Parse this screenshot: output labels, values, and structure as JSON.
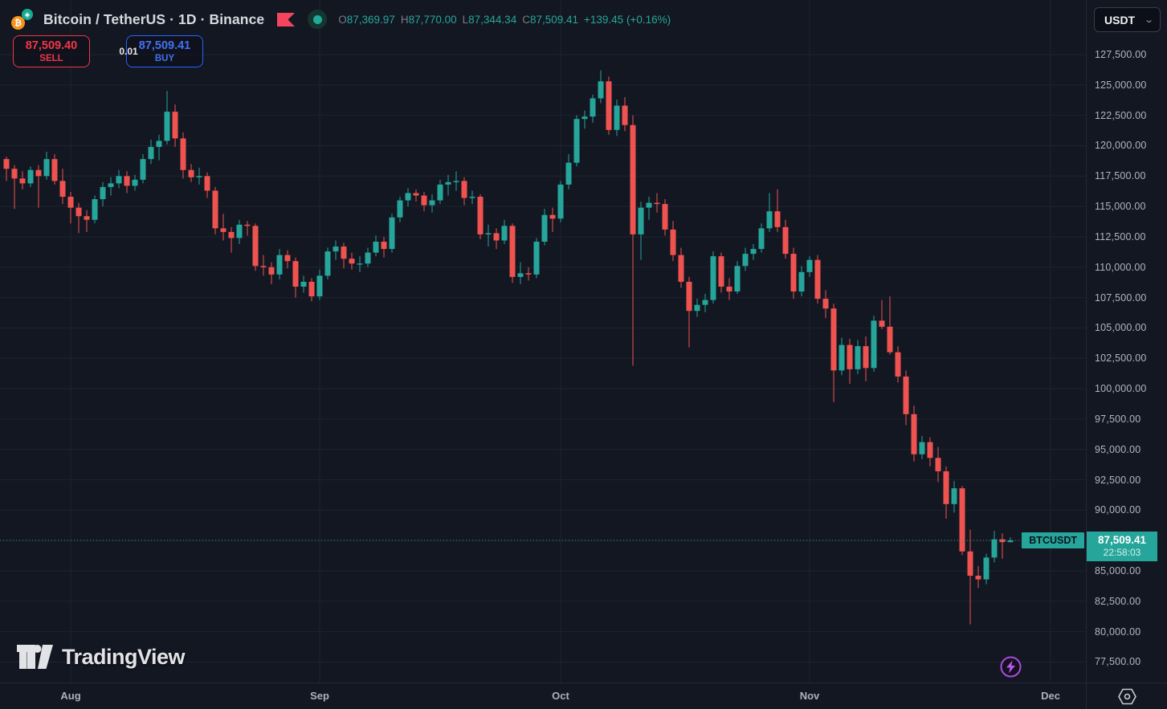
{
  "header": {
    "symbol_title": "Bitcoin / TetherUS · 1D · Binance",
    "ohlc": {
      "o_label": "O",
      "o": "87,369.97",
      "h_label": "H",
      "h": "87,770.00",
      "l_label": "L",
      "l": "87,344.34",
      "c_label": "C",
      "c": "87,509.41",
      "change": "+139.45 (+0.16%)"
    },
    "sell": {
      "price": "87,509.40",
      "label": "SELL"
    },
    "spread": "0.01",
    "buy": {
      "price": "87,509.41",
      "label": "BUY"
    },
    "currency": "USDT",
    "coin_symbol": "₿"
  },
  "price_line": {
    "symbol_badge": "BTCUSDT",
    "price": "87,509.41",
    "countdown": "22:58:03"
  },
  "watermark": {
    "text": "TradingView"
  },
  "colors": {
    "background": "#131722",
    "grid": "#1e2330",
    "up": "#26a69a",
    "down": "#ef5350",
    "accent": "#26a69a",
    "sell_red": "#f23645",
    "buy_blue": "#2962ff",
    "axis_text": "#b2b5be",
    "lightning_purple": "#a84ddb"
  },
  "chart_data": {
    "type": "candlestick",
    "title": "Bitcoin / TetherUS · 1D · Binance",
    "symbol": "BTCUSDT",
    "interval": "1D",
    "exchange": "Binance",
    "legend_ohlc": {
      "open": 87369.97,
      "high": 87770.0,
      "low": 87344.34,
      "close": 87509.41,
      "change": 139.45,
      "change_pct": 0.16
    },
    "y_axis": {
      "min": 77500,
      "max": 127500,
      "step": 2500,
      "tick_values": [
        127500,
        125000,
        122500,
        120000,
        117500,
        115000,
        112500,
        110000,
        107500,
        105000,
        102500,
        100000,
        97500,
        95000,
        92500,
        90000,
        87500,
        85000,
        82500,
        80000,
        77500
      ],
      "tick_labels": [
        "127,500.00",
        "125,000.00",
        "122,500.00",
        "120,000.00",
        "117,500.00",
        "115,000.00",
        "112,500.00",
        "110,000.00",
        "107,500.00",
        "105,000.00",
        "102,500.00",
        "100,000.00",
        "97,500.00",
        "95,000.00",
        "92,500.00",
        "90,000.00",
        "87,500.00",
        "85,000.00",
        "82,500.00",
        "80,000.00",
        "77,500.00"
      ]
    },
    "x_axis": {
      "months": [
        {
          "label": "Aug",
          "candle_index": 8
        },
        {
          "label": "Sep",
          "candle_index": 39
        },
        {
          "label": "Oct",
          "candle_index": 69
        },
        {
          "label": "Nov",
          "candle_index": 100
        },
        {
          "label": "Dec",
          "candle_index": 130
        }
      ]
    },
    "price_line_value": 87509.41,
    "candles": [
      [
        118900,
        119100,
        117100,
        118100
      ],
      [
        118100,
        118400,
        114800,
        117300
      ],
      [
        117300,
        117900,
        116400,
        116900
      ],
      [
        116900,
        118300,
        116600,
        118000
      ],
      [
        118000,
        118400,
        114900,
        117500
      ],
      [
        117500,
        119500,
        117200,
        118900
      ],
      [
        118900,
        119300,
        116800,
        117100
      ],
      [
        117100,
        118100,
        115200,
        115800
      ],
      [
        115800,
        116200,
        113600,
        114900
      ],
      [
        114900,
        115300,
        112800,
        114200
      ],
      [
        114200,
        114700,
        112900,
        113900
      ],
      [
        113900,
        115900,
        113600,
        115600
      ],
      [
        115600,
        117000,
        115000,
        116600
      ],
      [
        116600,
        117400,
        115900,
        116900
      ],
      [
        116900,
        118000,
        116500,
        117500
      ],
      [
        117500,
        117900,
        116100,
        116700
      ],
      [
        116700,
        117600,
        116300,
        117200
      ],
      [
        117200,
        119300,
        116900,
        118900
      ],
      [
        118900,
        120500,
        118500,
        119900
      ],
      [
        119900,
        120900,
        118800,
        120400
      ],
      [
        120400,
        124500,
        120100,
        122800
      ],
      [
        122800,
        123400,
        119900,
        120600
      ],
      [
        120600,
        121100,
        117300,
        118000
      ],
      [
        118000,
        118500,
        117000,
        117400
      ],
      [
        117400,
        118200,
        116800,
        117500
      ],
      [
        117500,
        117800,
        115700,
        116300
      ],
      [
        116300,
        116600,
        112700,
        113200
      ],
      [
        113200,
        114400,
        112200,
        112900
      ],
      [
        112900,
        113300,
        111200,
        112400
      ],
      [
        112400,
        113900,
        111900,
        113500
      ],
      [
        113500,
        113800,
        112600,
        113400
      ],
      [
        113400,
        113600,
        109700,
        110100
      ],
      [
        110100,
        111000,
        109300,
        110000
      ],
      [
        110000,
        110400,
        108600,
        109400
      ],
      [
        109400,
        111500,
        109000,
        111000
      ],
      [
        111000,
        111400,
        109900,
        110500
      ],
      [
        110500,
        110800,
        107500,
        108400
      ],
      [
        108400,
        109300,
        107900,
        108800
      ],
      [
        108800,
        109100,
        107200,
        107600
      ],
      [
        107600,
        109800,
        107300,
        109300
      ],
      [
        109300,
        111600,
        109000,
        111300
      ],
      [
        111300,
        112200,
        110600,
        111700
      ],
      [
        111700,
        112000,
        109900,
        110700
      ],
      [
        110700,
        111200,
        109800,
        110300
      ],
      [
        110300,
        110900,
        109600,
        110300
      ],
      [
        110300,
        111600,
        110000,
        111200
      ],
      [
        111200,
        112600,
        110900,
        112100
      ],
      [
        112100,
        112500,
        110800,
        111500
      ],
      [
        111500,
        114400,
        111200,
        114100
      ],
      [
        114100,
        115800,
        113700,
        115500
      ],
      [
        115500,
        116500,
        115000,
        116100
      ],
      [
        116100,
        116400,
        115400,
        115900
      ],
      [
        115900,
        116200,
        114600,
        115100
      ],
      [
        115100,
        116000,
        114500,
        115500
      ],
      [
        115500,
        117200,
        115200,
        116800
      ],
      [
        116800,
        117600,
        115900,
        117000
      ],
      [
        117000,
        117900,
        116300,
        117100
      ],
      [
        117100,
        117400,
        115100,
        115700
      ],
      [
        115700,
        116300,
        115200,
        115800
      ],
      [
        115800,
        116000,
        112300,
        112700
      ],
      [
        112700,
        113500,
        111700,
        112800
      ],
      [
        112800,
        113200,
        111500,
        112200
      ],
      [
        112200,
        113900,
        111900,
        113400
      ],
      [
        113400,
        113600,
        108700,
        109200
      ],
      [
        109200,
        110400,
        108600,
        109500
      ],
      [
        109500,
        110000,
        108900,
        109400
      ],
      [
        109400,
        112400,
        109100,
        112100
      ],
      [
        112100,
        114800,
        111800,
        114300
      ],
      [
        114300,
        114900,
        112900,
        114000
      ],
      [
        114000,
        117100,
        113700,
        116800
      ],
      [
        116800,
        119300,
        116400,
        118600
      ],
      [
        118600,
        122500,
        118300,
        122200
      ],
      [
        122200,
        122900,
        121400,
        122400
      ],
      [
        122400,
        124200,
        121900,
        123900
      ],
      [
        123900,
        126200,
        123500,
        125300
      ],
      [
        125300,
        125700,
        120900,
        121300
      ],
      [
        121300,
        123800,
        120800,
        123300
      ],
      [
        123300,
        124000,
        121200,
        121700
      ],
      [
        121700,
        122500,
        101900,
        112700
      ],
      [
        112700,
        115400,
        110600,
        114900
      ],
      [
        114900,
        115800,
        113900,
        115300
      ],
      [
        115300,
        116100,
        114500,
        115200
      ],
      [
        115200,
        115600,
        112600,
        113100
      ],
      [
        113100,
        113800,
        110500,
        111000
      ],
      [
        111000,
        111600,
        108300,
        108800
      ],
      [
        108800,
        109200,
        103400,
        106400
      ],
      [
        106400,
        107400,
        105900,
        106900
      ],
      [
        106900,
        107800,
        106300,
        107300
      ],
      [
        107300,
        111300,
        107000,
        110900
      ],
      [
        110900,
        111200,
        107900,
        108400
      ],
      [
        108400,
        109100,
        107300,
        108000
      ],
      [
        108000,
        110500,
        107800,
        110100
      ],
      [
        110100,
        111600,
        109700,
        111100
      ],
      [
        111100,
        111900,
        110600,
        111500
      ],
      [
        111500,
        113600,
        111200,
        113200
      ],
      [
        113200,
        116100,
        112900,
        114600
      ],
      [
        114600,
        116400,
        112900,
        113300
      ],
      [
        113300,
        113900,
        110700,
        111100
      ],
      [
        111100,
        111600,
        107400,
        108000
      ],
      [
        108000,
        110100,
        107600,
        109600
      ],
      [
        109600,
        110900,
        109200,
        110600
      ],
      [
        110600,
        111000,
        107000,
        107400
      ],
      [
        107400,
        108100,
        105800,
        106600
      ],
      [
        106600,
        107000,
        98900,
        101500
      ],
      [
        101500,
        104200,
        101100,
        103600
      ],
      [
        103600,
        104100,
        100400,
        101600
      ],
      [
        101600,
        104000,
        101200,
        103500
      ],
      [
        103500,
        104300,
        100600,
        101700
      ],
      [
        101700,
        106000,
        101400,
        105600
      ],
      [
        105600,
        107300,
        104900,
        105100
      ],
      [
        105100,
        107600,
        102800,
        103000
      ],
      [
        103000,
        103500,
        100500,
        101000
      ],
      [
        101000,
        101500,
        97000,
        97900
      ],
      [
        97900,
        98600,
        94000,
        94600
      ],
      [
        94600,
        96100,
        94200,
        95600
      ],
      [
        95600,
        96000,
        93600,
        94300
      ],
      [
        94300,
        95200,
        92300,
        93200
      ],
      [
        93200,
        93600,
        89300,
        90500
      ],
      [
        90500,
        92400,
        89800,
        91800
      ],
      [
        91800,
        92000,
        86300,
        86600
      ],
      [
        86600,
        88400,
        80600,
        84600
      ],
      [
        84600,
        85400,
        83600,
        84300
      ],
      [
        84300,
        86400,
        83900,
        86100
      ],
      [
        86100,
        88300,
        85700,
        87600
      ],
      [
        87600,
        88100,
        86000,
        87369.97
      ],
      [
        87369.97,
        87770.0,
        87344.34,
        87509.41
      ]
    ]
  }
}
